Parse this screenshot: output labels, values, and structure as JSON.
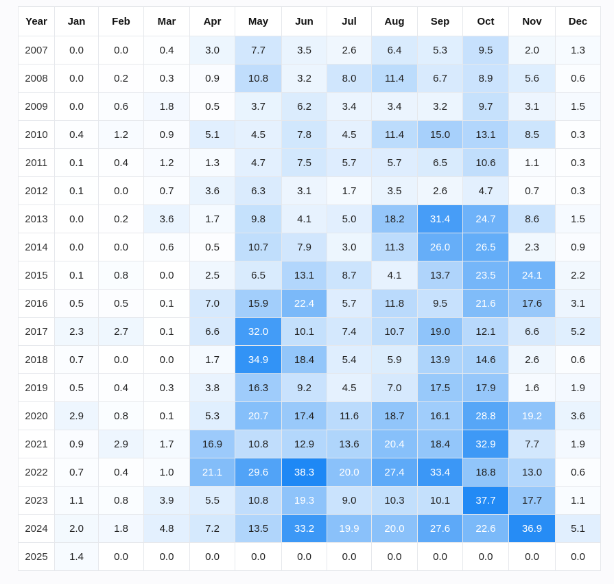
{
  "chart_data": {
    "type": "heatmap",
    "columns": [
      "Year",
      "Jan",
      "Feb",
      "Mar",
      "Apr",
      "May",
      "Jun",
      "Jul",
      "Aug",
      "Sep",
      "Oct",
      "Nov",
      "Dec"
    ],
    "rows": [
      {
        "year": "2007",
        "values": [
          0.0,
          0.0,
          0.4,
          3.0,
          7.7,
          3.5,
          2.6,
          6.4,
          5.3,
          9.5,
          2.0,
          1.3
        ]
      },
      {
        "year": "2008",
        "values": [
          0.0,
          0.2,
          0.3,
          0.9,
          10.8,
          3.2,
          8.0,
          11.4,
          6.7,
          8.9,
          5.6,
          0.6
        ]
      },
      {
        "year": "2009",
        "values": [
          0.0,
          0.6,
          1.8,
          0.5,
          3.7,
          6.2,
          3.4,
          3.4,
          3.2,
          9.7,
          3.1,
          1.5
        ]
      },
      {
        "year": "2010",
        "values": [
          0.4,
          1.2,
          0.9,
          5.1,
          4.5,
          7.8,
          4.5,
          11.4,
          15.0,
          13.1,
          8.5,
          0.3
        ]
      },
      {
        "year": "2011",
        "values": [
          0.1,
          0.4,
          1.2,
          1.3,
          4.7,
          7.5,
          5.7,
          5.7,
          6.5,
          10.6,
          1.1,
          0.3
        ]
      },
      {
        "year": "2012",
        "values": [
          0.1,
          0.0,
          0.7,
          3.6,
          6.3,
          3.1,
          1.7,
          3.5,
          2.6,
          4.7,
          0.7,
          0.3
        ]
      },
      {
        "year": "2013",
        "values": [
          0.0,
          0.2,
          3.6,
          1.7,
          9.8,
          4.1,
          5.0,
          18.2,
          31.4,
          24.7,
          8.6,
          1.5
        ]
      },
      {
        "year": "2014",
        "values": [
          0.0,
          0.0,
          0.6,
          0.5,
          10.7,
          7.9,
          3.0,
          11.3,
          26.0,
          26.5,
          2.3,
          0.9
        ]
      },
      {
        "year": "2015",
        "values": [
          0.1,
          0.8,
          0.0,
          2.5,
          6.5,
          13.1,
          8.7,
          4.1,
          13.7,
          23.5,
          24.1,
          2.2
        ]
      },
      {
        "year": "2016",
        "values": [
          0.5,
          0.5,
          0.1,
          7.0,
          15.9,
          22.4,
          5.7,
          11.8,
          9.5,
          21.6,
          17.6,
          3.1
        ]
      },
      {
        "year": "2017",
        "values": [
          2.3,
          2.7,
          0.1,
          6.6,
          32.0,
          10.1,
          7.4,
          10.7,
          19.0,
          12.1,
          6.6,
          5.2
        ]
      },
      {
        "year": "2018",
        "values": [
          0.7,
          0.0,
          0.0,
          1.7,
          34.9,
          18.4,
          5.4,
          5.9,
          13.9,
          14.6,
          2.6,
          0.6
        ]
      },
      {
        "year": "2019",
        "values": [
          0.5,
          0.4,
          0.3,
          3.8,
          16.3,
          9.2,
          4.5,
          7.0,
          17.5,
          17.9,
          1.6,
          1.9
        ]
      },
      {
        "year": "2020",
        "values": [
          2.9,
          0.8,
          0.1,
          5.3,
          20.7,
          17.4,
          11.6,
          18.7,
          16.1,
          28.8,
          19.2,
          3.6
        ]
      },
      {
        "year": "2021",
        "values": [
          0.9,
          2.9,
          1.7,
          16.9,
          10.8,
          12.9,
          13.6,
          20.4,
          18.4,
          32.9,
          7.7,
          1.9
        ]
      },
      {
        "year": "2022",
        "values": [
          0.7,
          0.4,
          1.0,
          21.1,
          29.6,
          38.3,
          20.0,
          27.4,
          33.4,
          18.8,
          13.0,
          0.6
        ]
      },
      {
        "year": "2023",
        "values": [
          1.1,
          0.8,
          3.9,
          5.5,
          10.8,
          19.3,
          9.0,
          10.3,
          10.1,
          37.7,
          17.7,
          1.1
        ]
      },
      {
        "year": "2024",
        "values": [
          2.0,
          1.8,
          4.8,
          7.2,
          13.5,
          33.2,
          19.9,
          20.0,
          27.6,
          22.6,
          36.9,
          5.1
        ]
      },
      {
        "year": "2025",
        "values": [
          1.4,
          0.0,
          0.0,
          0.0,
          0.0,
          0.0,
          0.0,
          0.0,
          0.0,
          0.0,
          0.0,
          0.0
        ]
      }
    ],
    "color_scale": {
      "min_color": "#ffffff",
      "max_color": "#1e88f5",
      "min": 0,
      "max": 38.3
    }
  }
}
